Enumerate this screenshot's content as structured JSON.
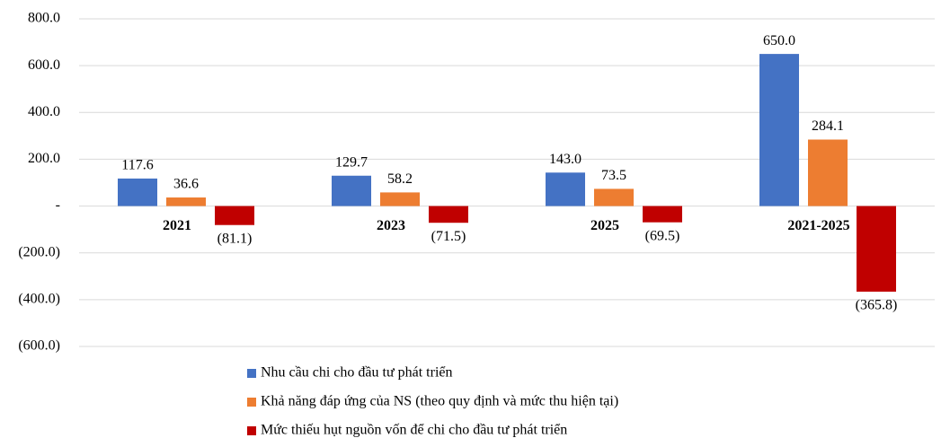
{
  "chart_data": {
    "type": "bar",
    "categories": [
      "2021",
      "2023",
      "2025",
      "2021-2025"
    ],
    "series": [
      {
        "name": "Nhu cầu chi cho đầu tư phát triển",
        "color": "#4472c4",
        "values": [
          117.6,
          129.7,
          143.0,
          650.0
        ],
        "value_labels": [
          "117.6",
          "129.7",
          "143.0",
          "650.0"
        ]
      },
      {
        "name": "Khả năng đáp ứng của NS (theo quy định và mức thu hiện tại)",
        "color": "#ed7d31",
        "values": [
          36.6,
          58.2,
          73.5,
          284.1
        ],
        "value_labels": [
          "36.6",
          "58.2",
          "73.5",
          "284.1"
        ]
      },
      {
        "name": "Mức thiếu hụt nguồn vốn để chi cho đầu tư phát triển",
        "color": "#c00000",
        "values": [
          -81.1,
          -71.5,
          -69.5,
          -365.8
        ],
        "value_labels": [
          "(81.1)",
          "(71.5)",
          "(69.5)",
          "(365.8)"
        ]
      }
    ],
    "ylim": [
      -600,
      800
    ],
    "yticks": [
      {
        "value": -600,
        "label": "(600.0)"
      },
      {
        "value": -400,
        "label": "(400.0)"
      },
      {
        "value": -200,
        "label": "(200.0)"
      },
      {
        "value": 0,
        "label": "-"
      },
      {
        "value": 200,
        "label": "200.0"
      },
      {
        "value": 400,
        "label": "400.0"
      },
      {
        "value": 600,
        "label": "600.0"
      },
      {
        "value": 800,
        "label": "800.0"
      }
    ],
    "grid": true,
    "legend": "bottom"
  }
}
